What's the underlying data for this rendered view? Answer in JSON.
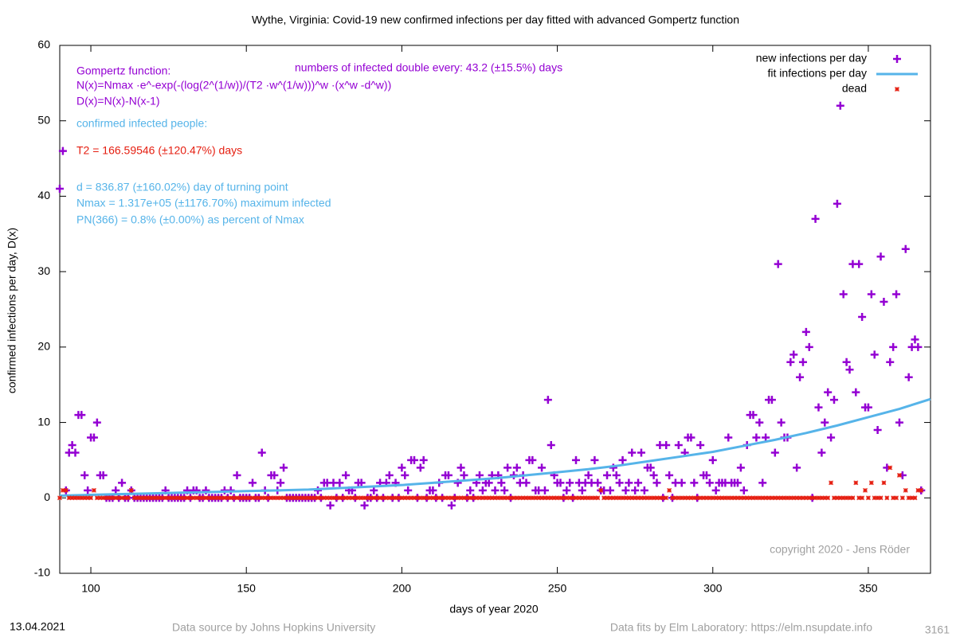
{
  "chart_data": {
    "type": "scatter",
    "title": "Wythe,  Virginia: Covid-19 new confirmed infections per day fitted with advanced Gompertz function",
    "x_label": "days of year 2020",
    "y_label": "confirmed infections per day, D(x)",
    "xlim": [
      90,
      370
    ],
    "ylim": [
      -10,
      60
    ],
    "xticks": [
      100,
      150,
      200,
      250,
      300,
      350
    ],
    "yticks": [
      -10,
      0,
      10,
      20,
      30,
      40,
      50,
      60
    ],
    "legend": "top-right",
    "x": [
      90,
      91,
      92,
      93,
      94,
      95,
      96,
      97,
      98,
      99,
      100,
      101,
      102,
      103,
      104,
      105,
      106,
      107,
      108,
      109,
      110,
      111,
      112,
      113,
      114,
      115,
      116,
      117,
      118,
      119,
      120,
      121,
      122,
      123,
      124,
      125,
      126,
      127,
      128,
      129,
      130,
      131,
      132,
      133,
      134,
      135,
      136,
      137,
      138,
      139,
      140,
      141,
      142,
      143,
      144,
      145,
      146,
      147,
      148,
      149,
      150,
      151,
      152,
      153,
      154,
      155,
      156,
      157,
      158,
      159,
      160,
      161,
      162,
      163,
      164,
      165,
      166,
      167,
      168,
      169,
      170,
      171,
      172,
      173,
      174,
      175,
      176,
      177,
      178,
      179,
      180,
      181,
      182,
      183,
      184,
      185,
      186,
      187,
      188,
      189,
      190,
      191,
      192,
      193,
      194,
      195,
      196,
      197,
      198,
      199,
      200,
      201,
      202,
      203,
      204,
      205,
      206,
      207,
      208,
      209,
      210,
      211,
      212,
      213,
      214,
      215,
      216,
      217,
      218,
      219,
      220,
      221,
      222,
      223,
      224,
      225,
      226,
      227,
      228,
      229,
      230,
      231,
      232,
      233,
      234,
      235,
      236,
      237,
      238,
      239,
      240,
      241,
      242,
      243,
      244,
      245,
      246,
      247,
      248,
      249,
      250,
      251,
      252,
      253,
      254,
      255,
      256,
      257,
      258,
      259,
      260,
      261,
      262,
      263,
      264,
      265,
      266,
      267,
      268,
      269,
      270,
      271,
      272,
      273,
      274,
      275,
      276,
      277,
      278,
      279,
      280,
      281,
      282,
      283,
      284,
      285,
      286,
      287,
      288,
      289,
      290,
      291,
      292,
      293,
      294,
      295,
      296,
      297,
      298,
      299,
      300,
      301,
      302,
      303,
      304,
      305,
      306,
      307,
      308,
      309,
      310,
      311,
      312,
      313,
      314,
      315,
      316,
      317,
      318,
      319,
      320,
      321,
      322,
      323,
      324,
      325,
      326,
      327,
      328,
      329,
      330,
      331,
      332,
      333,
      334,
      335,
      336,
      337,
      338,
      339,
      340,
      341,
      342,
      343,
      344,
      345,
      346,
      347,
      348,
      349,
      350,
      351,
      352,
      353,
      354,
      355,
      356,
      357,
      358,
      359,
      360,
      361,
      362,
      363,
      364,
      365,
      366,
      367
    ],
    "series": [
      {
        "name": "new infections per day",
        "color": "#9400d3",
        "marker": "plus",
        "values": [
          41,
          46,
          1,
          6,
          7,
          6,
          11,
          11,
          3,
          1,
          8,
          8,
          10,
          3,
          3,
          0,
          0,
          0,
          1,
          0,
          2,
          0,
          0,
          1,
          0,
          0,
          0,
          0,
          0,
          0,
          0,
          0,
          0,
          0,
          1,
          0,
          0,
          0,
          0,
          0,
          0,
          1,
          0,
          1,
          1,
          0,
          0,
          1,
          0,
          0,
          0,
          0,
          0,
          1,
          0,
          1,
          0,
          3,
          0,
          0,
          0,
          0,
          2,
          0,
          0,
          6,
          1,
          0,
          3,
          3,
          1,
          2,
          4,
          0,
          0,
          0,
          0,
          0,
          0,
          0,
          0,
          0,
          0,
          1,
          0,
          2,
          2,
          -1,
          2,
          0,
          2,
          0,
          3,
          1,
          1,
          0,
          2,
          2,
          -1,
          0,
          0,
          1,
          0,
          2,
          0,
          2,
          3,
          0,
          2,
          0,
          4,
          3,
          1,
          5,
          5,
          0,
          4,
          5,
          0,
          1,
          1,
          0,
          2,
          0,
          3,
          3,
          -1,
          0,
          2,
          4,
          3,
          0,
          1,
          0,
          2,
          3,
          1,
          2,
          2,
          3,
          1,
          3,
          2,
          1,
          4,
          0,
          3,
          4,
          2,
          3,
          2,
          5,
          5,
          1,
          1,
          4,
          1,
          13,
          7,
          3,
          2,
          2,
          0,
          1,
          2,
          0,
          5,
          2,
          1,
          2,
          3,
          2,
          5,
          2,
          1,
          1,
          3,
          1,
          4,
          3,
          2,
          5,
          1,
          2,
          6,
          1,
          2,
          6,
          1,
          4,
          4,
          3,
          2,
          7,
          0,
          7,
          3,
          0,
          2,
          7,
          2,
          6,
          8,
          8,
          2,
          0,
          7,
          3,
          3,
          2,
          5,
          1,
          2,
          2,
          2,
          8,
          2,
          2,
          2,
          4,
          1,
          7,
          11,
          11,
          8,
          10,
          2,
          8,
          13,
          13,
          6,
          31,
          10,
          8,
          8,
          18,
          19,
          4,
          16,
          18,
          22,
          20,
          0,
          37,
          12,
          6,
          10,
          14,
          8,
          13,
          39,
          52,
          27,
          18,
          17,
          31,
          14,
          31,
          24,
          12,
          12,
          27,
          19,
          9,
          32,
          26,
          4,
          18,
          20,
          27,
          10,
          3,
          33,
          16,
          20,
          21,
          20,
          1
        ]
      },
      {
        "name": "fit infections per day",
        "color": "#56b4e9",
        "marker": "line",
        "x": [
          90,
          100,
          110,
          120,
          130,
          140,
          150,
          160,
          170,
          180,
          190,
          200,
          210,
          220,
          230,
          240,
          250,
          260,
          270,
          280,
          290,
          300,
          310,
          320,
          330,
          340,
          350,
          360,
          370
        ],
        "values": [
          0.3,
          0.4,
          0.5,
          0.6,
          0.7,
          0.8,
          0.9,
          1.0,
          1.1,
          1.3,
          1.5,
          1.7,
          2.0,
          2.3,
          2.6,
          3.0,
          3.4,
          3.8,
          4.3,
          4.9,
          5.5,
          6.1,
          6.9,
          7.7,
          8.6,
          9.6,
          10.7,
          11.8,
          13.1
        ]
      },
      {
        "name": "dead",
        "color": "#e51e10",
        "marker": "star",
        "values": [
          0,
          1,
          1,
          0,
          0,
          0,
          0,
          0,
          0,
          0,
          0,
          1,
          0,
          0,
          0,
          0,
          0,
          0,
          0,
          0,
          0,
          0,
          0,
          1,
          0,
          0,
          0,
          0,
          0,
          0,
          0,
          0,
          0,
          0,
          0,
          0,
          0,
          0,
          0,
          0,
          0,
          0,
          0,
          0,
          0,
          0,
          0,
          0,
          0,
          0,
          0,
          0,
          0,
          0,
          0,
          0,
          0,
          0,
          0,
          0,
          0,
          0,
          0,
          0,
          0,
          0,
          0,
          0,
          0,
          0,
          0,
          0,
          0,
          0,
          0,
          0,
          0,
          0,
          0,
          0,
          0,
          0,
          0,
          0,
          0,
          0,
          0,
          0,
          0,
          0,
          0,
          0,
          0,
          0,
          0,
          0,
          0,
          0,
          0,
          0,
          0,
          0,
          0,
          0,
          0,
          0,
          0,
          0,
          0,
          0,
          0,
          0,
          0,
          0,
          0,
          0,
          0,
          0,
          0,
          0,
          0,
          0,
          0,
          0,
          0,
          0,
          0,
          0,
          0,
          0,
          0,
          0,
          0,
          0,
          0,
          0,
          0,
          0,
          0,
          0,
          0,
          0,
          0,
          0,
          0,
          0,
          0,
          0,
          0,
          0,
          0,
          0,
          0,
          0,
          0,
          0,
          0,
          0,
          0,
          0,
          0,
          0,
          0,
          0,
          0,
          0,
          0,
          0,
          0,
          0,
          0,
          0,
          0,
          0,
          1,
          0,
          0,
          0,
          0,
          0,
          0,
          0,
          0,
          0,
          0,
          0,
          0,
          0,
          0,
          0,
          0,
          0,
          0,
          0,
          0,
          0,
          1,
          0,
          0,
          0,
          0,
          0,
          0,
          0,
          0,
          0,
          0,
          0,
          0,
          0,
          0,
          0,
          0,
          0,
          0,
          0,
          0,
          0,
          0,
          0,
          0,
          0,
          0,
          0,
          0,
          0,
          0,
          0,
          0,
          0,
          0,
          0,
          0,
          0,
          0,
          0,
          0,
          0,
          0,
          0,
          0,
          0,
          0,
          0,
          0,
          0,
          0,
          0,
          2,
          0,
          0,
          0,
          0,
          0,
          0,
          0,
          2,
          0,
          0,
          1,
          0,
          2,
          0,
          0,
          0,
          2,
          0,
          4,
          0,
          0,
          3,
          0,
          1,
          0,
          0,
          0,
          1,
          1
        ]
      }
    ],
    "annotations": [
      {
        "text": "numbers of infected double every: 43.2 (±15.5%) days",
        "color": "#9400d3"
      },
      {
        "text": "Gompertz function:",
        "color": "#9400d3"
      },
      {
        "text": "N(x)=Nmax ·e^-exp(-(log(2^(1/w))/(T2 ·w^(1/w)))^w ·(x^w -d^w))",
        "color": "#9400d3"
      },
      {
        "text": "D(x)=N(x)-N(x-1)",
        "color": "#9400d3"
      },
      {
        "text": "confirmed infected people:",
        "color": "#56b4e9"
      },
      {
        "text": "T2 = 166.59546 (±120.47%) days",
        "color": "#e51e10"
      },
      {
        "text": "d = 836.87 (±160.02%) day of turning point",
        "color": "#56b4e9"
      },
      {
        "text": "Nmax = 1.317e+05 (±1176.70%) maximum infected",
        "color": "#56b4e9"
      },
      {
        "text": "PN(366) = 0.8% (±0.00%) as percent of Nmax",
        "color": "#56b4e9"
      },
      {
        "text": "copyright 2020 - Jens Röder",
        "color": "#a0a0a0"
      }
    ],
    "footer": {
      "date": "13.04.2021",
      "source": "Data source by Johns Hopkins University",
      "fits": "Data fits by Elm Laboratory: https://elm.nsupdate.info",
      "id": "3161"
    }
  }
}
